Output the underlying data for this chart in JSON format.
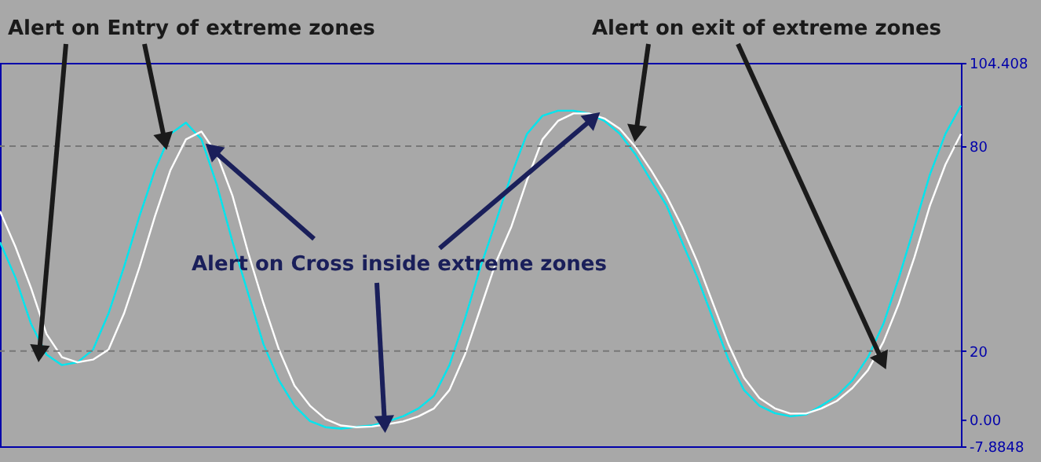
{
  "chart_data": {
    "type": "line",
    "annotations": [
      "Alert on Entry of extreme zones",
      "Alert on exit of extreme zones",
      "Alert on Cross inside extreme zones"
    ],
    "categories": [
      null,
      null,
      null,
      null,
      null,
      null,
      null,
      null,
      null,
      null,
      null,
      null,
      null,
      null,
      null,
      null,
      null,
      null,
      null,
      null,
      null,
      null,
      null,
      null,
      null,
      null,
      null,
      null,
      null,
      null,
      null,
      null,
      null,
      null,
      null,
      null,
      null,
      null,
      null,
      null,
      null,
      null,
      null,
      null,
      null,
      null,
      null,
      null,
      null,
      null,
      null,
      null,
      null,
      null,
      null,
      null,
      null,
      null,
      null,
      null,
      null,
      null,
      null
    ],
    "series": [
      {
        "color": "#00e5ee",
        "values": [
          51.9,
          41.5,
          28,
          19,
          15.9,
          16.7,
          20.4,
          31,
          44.6,
          59.5,
          73,
          83.6,
          86.9,
          82,
          68.6,
          52,
          37,
          22,
          11.4,
          4,
          -0.5,
          -2.3,
          -2.7,
          -2.2,
          -1.8,
          -0.6,
          0.9,
          3.2,
          6.9,
          15.9,
          29.5,
          44.6,
          58,
          71.7,
          83.6,
          88.9,
          90.4,
          90.4,
          89.6,
          87.4,
          83.6,
          77.6,
          70,
          62.7,
          52,
          41.5,
          29.5,
          17.6,
          8.6,
          4,
          1.8,
          0.9,
          1.4,
          4,
          6.9,
          11.4,
          18.2,
          28,
          41.5,
          56.5,
          71.7,
          83.6,
          91.9
        ]
      },
      {
        "color": "#ffffff",
        "values": [
          61,
          50.5,
          38.5,
          25,
          18.2,
          16.7,
          17.5,
          20.4,
          31,
          44.6,
          59.5,
          73,
          82,
          84.3,
          77.6,
          65.5,
          49,
          34,
          20.4,
          9.9,
          4,
          0.1,
          -1.8,
          -2.3,
          -2.1,
          -1.4,
          -0.6,
          0.9,
          3.2,
          8.6,
          19,
          32.5,
          46,
          56.5,
          70,
          82,
          87.4,
          89.6,
          89.6,
          88.1,
          85.1,
          79.8,
          73,
          65.5,
          56.5,
          46,
          34,
          22,
          12.2,
          6.2,
          3.2,
          1.7,
          1.7,
          3.2,
          5.4,
          9.2,
          14.4,
          22.7,
          34,
          47.5,
          62.6,
          74.6,
          83.6
        ]
      }
    ],
    "ylim": [
      -7.8848,
      104.408
    ],
    "yticks": [
      -7.8848,
      {
        "value": 0,
        "label": "0.00"
      },
      20,
      80,
      104.408
    ],
    "ref_lines": [
      {
        "axis": "y",
        "value": 80,
        "color": "#777777",
        "line_style": "dashed"
      },
      {
        "axis": "y",
        "value": 20,
        "color": "#777777",
        "line_style": "dashed"
      }
    ],
    "grid": false,
    "legend": false,
    "tick_labels": "y",
    "line_style": "solid"
  }
}
